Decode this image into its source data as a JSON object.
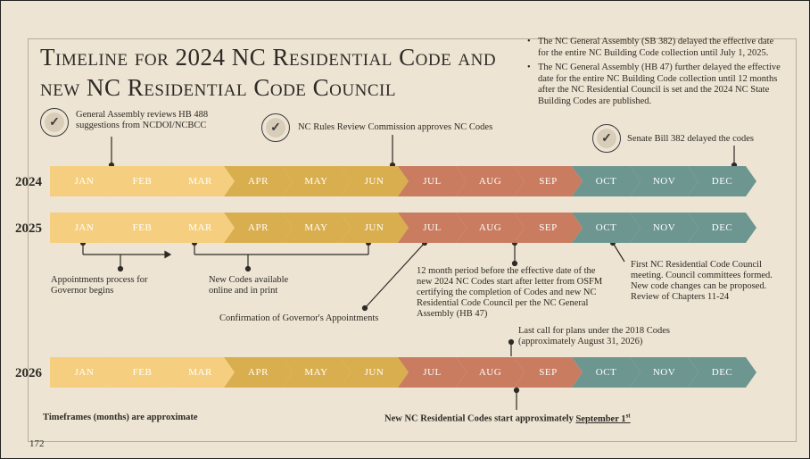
{
  "title": "Timeline for 2024 NC Residential Code and new NC Residential Code Council",
  "bullets": [
    "The NC General Assembly (SB 382) delayed the effective date for the entire NC Building Code collection until July 1, 2025.",
    "The NC General Assembly (HB 47) further delayed the effective date for the entire NC Building Code collection until 12 months after the NC Residential Council is set and the 2024 NC State Building Codes are published."
  ],
  "months": [
    "JAN",
    "FEB",
    "MAR",
    "APR",
    "MAY",
    "JUN",
    "JUL",
    "AUG",
    "SEP",
    "OCT",
    "NOV",
    "DEC"
  ],
  "month_colors": [
    "#f5cf7f",
    "#f5cf7f",
    "#f5cf7f",
    "#d9ae4f",
    "#d9ae4f",
    "#d9ae4f",
    "#c97c60",
    "#c97c60",
    "#c97c60",
    "#6d9691",
    "#6d9691",
    "#6d9691"
  ],
  "years": [
    "2024",
    "2025",
    "2026"
  ],
  "annotations": {
    "a2024_1": "General Assembly reviews HB 488 suggestions from NCDOI/NCBCC",
    "a2024_2": "NC Rules Review Commission approves NC Codes",
    "a2024_3": "Senate Bill 382 delayed the codes",
    "a2025_1": "Appointments process for Governor begins",
    "a2025_2": "New Codes available online and in print",
    "a2025_3": "Confirmation of Governor's Appointments",
    "a2025_4": "12 month period before the effective date of the new 2024 NC Codes start after letter from OSFM certifying the completion of Codes and new NC Residential Code Council per the NC General Assembly (HB 47)",
    "a2025_5": "First NC Residential Code Council meeting. Council committees formed. New code changes can be proposed. Review of Chapters 11-24",
    "a2026_1": "Last call for plans under the 2018 Codes (approximately August 31, 2026)"
  },
  "footer": {
    "approx": "Timeframes (months) are approximate",
    "start_prefix": "New NC Residential Codes start approximately ",
    "start_date": "September 1",
    "start_sup": "st",
    "page": "172"
  }
}
